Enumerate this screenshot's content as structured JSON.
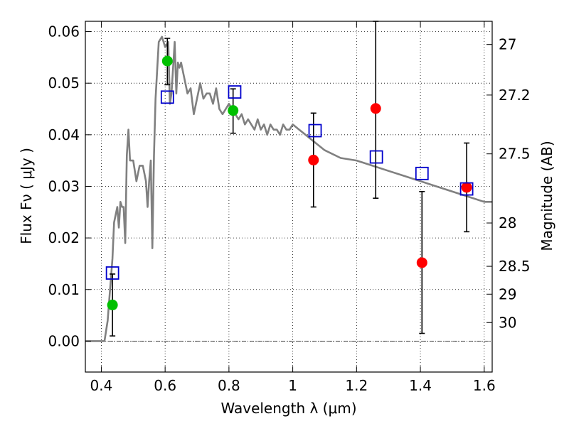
{
  "chart_data": {
    "type": "scatter",
    "title": "",
    "xlabel": "Wavelength  λ (μm)",
    "ylabel": "Flux  Fν  ( μJy )",
    "y2label": "Magnitude (AB)",
    "xlim": [
      0.35,
      1.625
    ],
    "ylim": [
      -0.006,
      0.062
    ],
    "x_ticks": [
      0.4,
      0.6,
      0.8,
      1.0,
      1.2,
      1.4,
      1.6
    ],
    "x_tick_labels": [
      "0.4",
      "0.6",
      "0.8",
      "1",
      "1.2",
      "1.4",
      "1.6"
    ],
    "y_ticks": [
      0.0,
      0.01,
      0.02,
      0.03,
      0.04,
      0.05,
      0.06
    ],
    "y_tick_labels": [
      "0.00",
      "0.01",
      "0.02",
      "0.03",
      "0.04",
      "0.05",
      "0.06"
    ],
    "y2_ticks": [
      {
        "flux": 0.0575,
        "label": "27"
      },
      {
        "flux": 0.0477,
        "label": "27.2"
      },
      {
        "flux": 0.0363,
        "label": "27.5"
      },
      {
        "flux": 0.0229,
        "label": "28"
      },
      {
        "flux": 0.0145,
        "label": "28.5"
      },
      {
        "flux": 0.0091,
        "label": "29"
      },
      {
        "flux": 0.0036,
        "label": "30"
      }
    ],
    "grid": true,
    "model_spectrum": {
      "color": "#808080",
      "x": [
        0.35,
        0.41,
        0.42,
        0.425,
        0.43,
        0.435,
        0.44,
        0.45,
        0.455,
        0.46,
        0.465,
        0.47,
        0.475,
        0.48,
        0.485,
        0.49,
        0.5,
        0.51,
        0.52,
        0.53,
        0.54,
        0.545,
        0.55,
        0.555,
        0.56,
        0.565,
        0.57,
        0.58,
        0.59,
        0.6,
        0.61,
        0.615,
        0.62,
        0.63,
        0.635,
        0.64,
        0.645,
        0.65,
        0.66,
        0.67,
        0.68,
        0.69,
        0.7,
        0.71,
        0.72,
        0.73,
        0.74,
        0.75,
        0.76,
        0.77,
        0.78,
        0.79,
        0.8,
        0.81,
        0.82,
        0.83,
        0.84,
        0.85,
        0.86,
        0.87,
        0.88,
        0.89,
        0.9,
        0.91,
        0.92,
        0.93,
        0.94,
        0.95,
        0.96,
        0.97,
        0.98,
        0.99,
        1.0,
        1.02,
        1.04,
        1.06,
        1.08,
        1.1,
        1.15,
        1.2,
        1.25,
        1.3,
        1.35,
        1.4,
        1.45,
        1.5,
        1.55,
        1.6,
        1.625
      ],
      "y": [
        0.0,
        0.0,
        0.004,
        0.008,
        0.012,
        0.016,
        0.023,
        0.026,
        0.022,
        0.027,
        0.026,
        0.026,
        0.019,
        0.036,
        0.041,
        0.035,
        0.035,
        0.031,
        0.034,
        0.034,
        0.031,
        0.026,
        0.031,
        0.035,
        0.018,
        0.036,
        0.047,
        0.058,
        0.059,
        0.057,
        0.058,
        0.046,
        0.048,
        0.058,
        0.048,
        0.054,
        0.053,
        0.054,
        0.051,
        0.048,
        0.049,
        0.044,
        0.047,
        0.05,
        0.047,
        0.048,
        0.048,
        0.046,
        0.049,
        0.045,
        0.044,
        0.045,
        0.046,
        0.045,
        0.044,
        0.043,
        0.044,
        0.042,
        0.043,
        0.042,
        0.041,
        0.043,
        0.041,
        0.042,
        0.04,
        0.042,
        0.041,
        0.041,
        0.04,
        0.042,
        0.041,
        0.041,
        0.042,
        0.041,
        0.04,
        0.039,
        0.038,
        0.037,
        0.0355,
        0.035,
        0.034,
        0.033,
        0.032,
        0.031,
        0.03,
        0.029,
        0.028,
        0.027,
        0.027
      ]
    },
    "series": [
      {
        "marker": "circle",
        "color": "#00c000",
        "points": [
          {
            "x": 0.435,
            "y": 0.007,
            "err": [
              0.001,
              0.013
            ]
          },
          {
            "x": 0.607,
            "y": 0.0543,
            "err": [
              0.0497,
              0.0587
            ]
          },
          {
            "x": 0.813,
            "y": 0.0447,
            "err": [
              0.0403,
              0.0489
            ]
          }
        ]
      },
      {
        "marker": "circle",
        "color": "#ff0000",
        "points": [
          {
            "x": 1.065,
            "y": 0.0351,
            "err": [
              0.026,
              0.0442
            ]
          },
          {
            "x": 1.26,
            "y": 0.0451,
            "err": [
              0.0277,
              0.062
            ]
          },
          {
            "x": 1.405,
            "y": 0.0152,
            "err": [
              0.0015,
              0.029
            ]
          },
          {
            "x": 1.545,
            "y": 0.0298,
            "err": [
              0.0212,
              0.0384
            ]
          }
        ]
      },
      {
        "marker": "open-square",
        "color": "#0000cc",
        "points": [
          {
            "x": 0.435,
            "y": 0.0132
          },
          {
            "x": 0.607,
            "y": 0.0473
          },
          {
            "x": 0.818,
            "y": 0.0483
          },
          {
            "x": 1.07,
            "y": 0.0408
          },
          {
            "x": 1.262,
            "y": 0.0357
          },
          {
            "x": 1.405,
            "y": 0.0325
          },
          {
            "x": 1.545,
            "y": 0.0295
          }
        ]
      }
    ]
  }
}
